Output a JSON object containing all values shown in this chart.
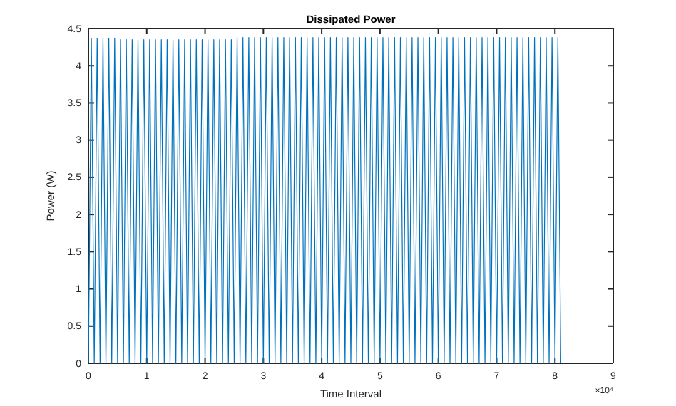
{
  "chart_data": {
    "type": "line",
    "title": "Dissipated Power",
    "xlabel": "Time Interval",
    "ylabel": "Power (W)",
    "annotations": [
      "×10⁴"
    ],
    "x": [
      0,
      0.05,
      0.1,
      0.15,
      0.2,
      0.25,
      0.3,
      0.35,
      0.4,
      0.45,
      0.5,
      0.55,
      0.6,
      0.65,
      0.7,
      0.75,
      0.8,
      0.85,
      0.9,
      0.95,
      1,
      1.05,
      1.1,
      1.15,
      1.2,
      1.25,
      1.3,
      1.35,
      1.4,
      1.45,
      1.5,
      1.55,
      1.6,
      1.65,
      1.7,
      1.75,
      1.8,
      1.85,
      1.9,
      1.95,
      2,
      2.05,
      2.1,
      2.15,
      2.2,
      2.25,
      2.3,
      2.35,
      2.4,
      2.45,
      2.5,
      2.55,
      2.6,
      2.65,
      2.7,
      2.75,
      2.8,
      2.85,
      2.9,
      2.95,
      3,
      3.05,
      3.1,
      3.15,
      3.2,
      3.25,
      3.3,
      3.35,
      3.4,
      3.45,
      3.5,
      3.55,
      3.6,
      3.65,
      3.7,
      3.75,
      3.8,
      3.85,
      3.9,
      3.95,
      4,
      4.05,
      4.1,
      4.15,
      4.2,
      4.25,
      4.3,
      4.35,
      4.4,
      4.45,
      4.5,
      4.55,
      4.6,
      4.65,
      4.7,
      4.75,
      4.8,
      4.85,
      4.9,
      4.95,
      5,
      5.05,
      5.1,
      5.15,
      5.2,
      5.25,
      5.3,
      5.35,
      5.4,
      5.45,
      5.5,
      5.55,
      5.6,
      5.65,
      5.7,
      5.75,
      5.8,
      5.85,
      5.9,
      5.95,
      6,
      6.05,
      6.1,
      6.15,
      6.2,
      6.25,
      6.3,
      6.35,
      6.4,
      6.45,
      6.5,
      6.55,
      6.6,
      6.65,
      6.7,
      6.75,
      6.8,
      6.85,
      6.9,
      6.95,
      7,
      7.05,
      7.1,
      7.15,
      7.2,
      7.25,
      7.3,
      7.35,
      7.4,
      7.45,
      7.5,
      7.55,
      7.6,
      7.65,
      7.7,
      7.75,
      7.8,
      7.85,
      7.9,
      7.95,
      8,
      8.05,
      8.1
    ],
    "series": [
      {
        "color": "#0072bd",
        "values": [
          0,
          4.37,
          0,
          4.37,
          0,
          4.37,
          0,
          4.37,
          0,
          4.37,
          0,
          4.35,
          0,
          4.35,
          0,
          4.35,
          0,
          4.35,
          0,
          4.35,
          0,
          4.35,
          0,
          4.35,
          0,
          4.35,
          0,
          4.35,
          0,
          4.35,
          0,
          4.35,
          0,
          4.35,
          0,
          4.35,
          0,
          4.35,
          0,
          4.35,
          0,
          4.35,
          0,
          4.35,
          0,
          4.35,
          0,
          4.35,
          0,
          4.35,
          0,
          4.38,
          0,
          4.38,
          0,
          4.38,
          0,
          4.38,
          0,
          4.38,
          0,
          4.38,
          0,
          4.38,
          0,
          4.38,
          0,
          4.38,
          0,
          4.38,
          0,
          4.38,
          0,
          4.38,
          0,
          4.38,
          0,
          4.38,
          0,
          4.38,
          0,
          4.38,
          0,
          4.38,
          0,
          4.38,
          0,
          4.38,
          0,
          4.38,
          0,
          4.38,
          0,
          4.38,
          0,
          4.38,
          0,
          4.38,
          0,
          4.38,
          0,
          4.38,
          0,
          4.38,
          0,
          4.38,
          0,
          4.38,
          0,
          4.38,
          0,
          4.38,
          0,
          4.38,
          0,
          4.38,
          0,
          4.38,
          0,
          4.38,
          0,
          4.38,
          0,
          4.38,
          0,
          4.38,
          0,
          4.38,
          0,
          4.38,
          0,
          4.38,
          0,
          4.38,
          0,
          4.38,
          0,
          4.38,
          0,
          4.38,
          0,
          4.38,
          0,
          4.38,
          0,
          4.38,
          0,
          4.38,
          0,
          4.38,
          0,
          4.38,
          0,
          4.38,
          0,
          4.38,
          0,
          4.38,
          0,
          4.38,
          0,
          4.38,
          0
        ]
      }
    ],
    "xlim": [
      0,
      9
    ],
    "xticks": [
      0,
      1,
      2,
      3,
      4,
      5,
      6,
      7,
      8,
      9
    ],
    "ylim": [
      0,
      4.5
    ],
    "yticks": [
      0,
      0.5,
      1,
      1.5,
      2,
      2.5,
      3,
      3.5,
      4,
      4.5
    ],
    "grid": false,
    "marker": "none",
    "line_style": "solid"
  }
}
